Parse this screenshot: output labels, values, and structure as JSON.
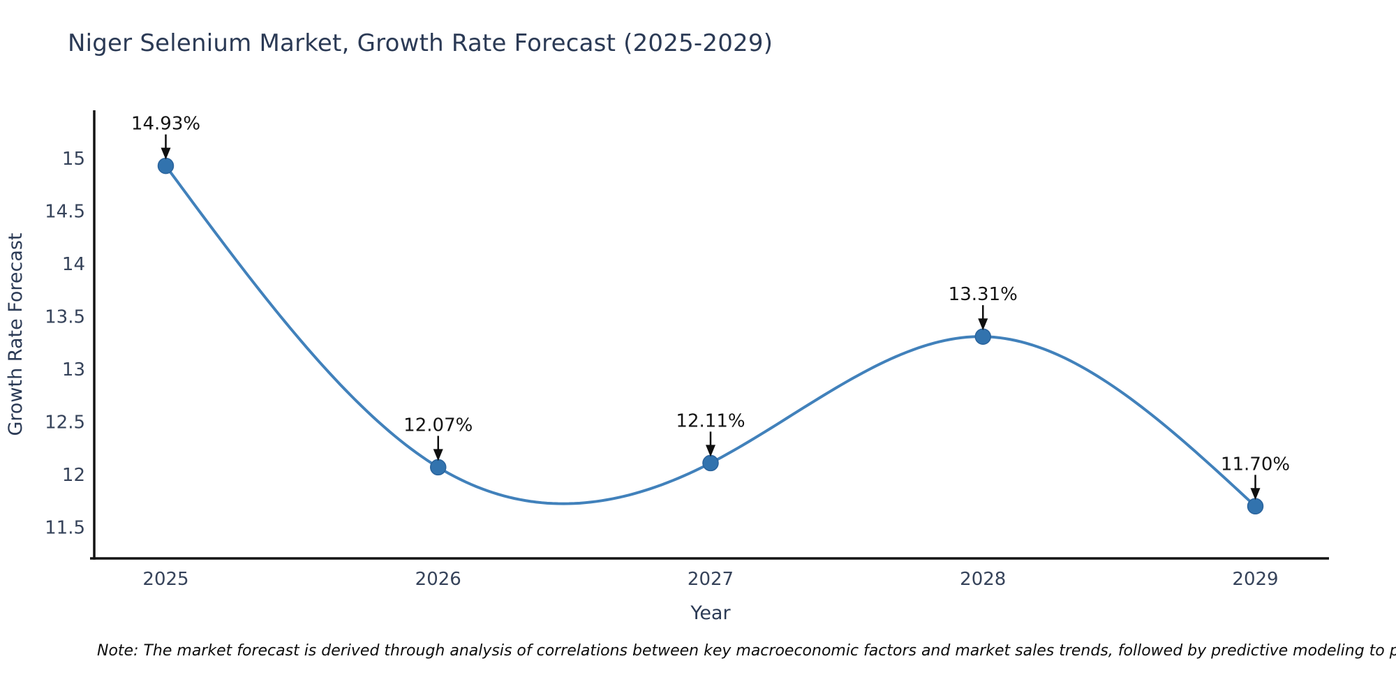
{
  "title": "Niger Selenium Market, Growth Rate Forecast (2025-2029)",
  "note": "Note: The market forecast is derived through analysis of correlations between key macroeconomic factors and market sales trends, followed by predictive modeling to project future sales.",
  "chart_data": {
    "type": "line",
    "title": "Niger Selenium Market, Growth Rate Forecast (2025-2029)",
    "xlabel": "Year",
    "ylabel": "Growth Rate Forecast",
    "x": [
      2025,
      2026,
      2027,
      2028,
      2029
    ],
    "values": [
      14.93,
      12.07,
      12.11,
      13.31,
      11.7
    ],
    "point_labels": [
      "14.93%",
      "12.07%",
      "12.11%",
      "13.31%",
      "11.70%"
    ],
    "yticks": [
      15,
      14.5,
      14,
      13.5,
      13,
      12.5,
      12,
      11.5
    ],
    "xticks": [
      "2025",
      "2026",
      "2027",
      "2028",
      "2029"
    ],
    "ylim": [
      11.2,
      15.46
    ],
    "grid": false,
    "legend": "none",
    "smooth_spline": true,
    "colors": {
      "line": "#4181bb",
      "marker_fill": "#3273ae",
      "marker_edge": "#2a639c",
      "annotation_text": "#141414",
      "arrow": "#0f0f0f",
      "axis": "#141414",
      "tick_text": "#36435a",
      "axis_label_text": "#2b3a55"
    }
  }
}
